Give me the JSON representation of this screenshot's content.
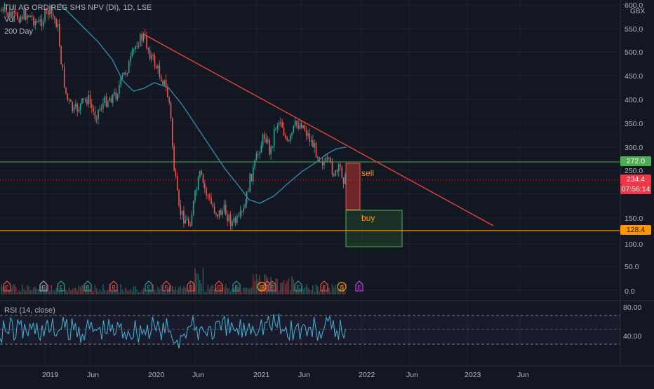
{
  "header": {
    "symbol_title": "TUI AG ORD REG SHS NPV (DI), 1D, LSE",
    "vol_label": "Vol",
    "ma_label": "200 Day"
  },
  "currency": "GBX",
  "price_axis": {
    "ticks": [
      "600.0",
      "550.0",
      "500.0",
      "450.0",
      "400.0",
      "350.0",
      "300.0",
      "250.0",
      "150.0",
      "100.0",
      "50.0",
      "0.0"
    ],
    "badges": {
      "resistance": {
        "label": "272.0",
        "color": "#4caf50"
      },
      "last": {
        "label": "234.4",
        "color": "#f23645"
      },
      "countdown": {
        "label": "07:56:14",
        "color": "#f23645"
      },
      "support": {
        "label": "128.4",
        "color": "#ff9800"
      }
    }
  },
  "rsi_axis": {
    "ticks": [
      "80.00",
      "40.00"
    ]
  },
  "rsi_label": "RSI (14, close)",
  "time_axis": {
    "ticks": [
      "2019",
      "Jun",
      "2020",
      "Jun",
      "2021",
      "Jun",
      "2022",
      "Jun",
      "2023",
      "Jun"
    ]
  },
  "annotations": {
    "sell": "sell",
    "buy": "buy"
  },
  "event_icons": [
    "E",
    "E",
    "E",
    "E",
    "E",
    "E",
    "E",
    "E",
    "E",
    "E",
    "S",
    "E",
    "E",
    "E",
    "E",
    "S",
    "E"
  ],
  "colors": {
    "up": "#26a69a",
    "down": "#ef5350",
    "ma": "#2f8fb0",
    "trendline": "#f0453a",
    "resistance": "#4caf50",
    "support": "#ff9800",
    "rsi": "#3fb6d6"
  },
  "chart_data": {
    "type": "candlestick",
    "ylim": [
      0,
      600
    ],
    "ma_name": "200 Day",
    "rsi_levels": [
      70,
      50,
      30
    ],
    "resistance": 272.0,
    "last": 234.4,
    "support": 128.4
  }
}
